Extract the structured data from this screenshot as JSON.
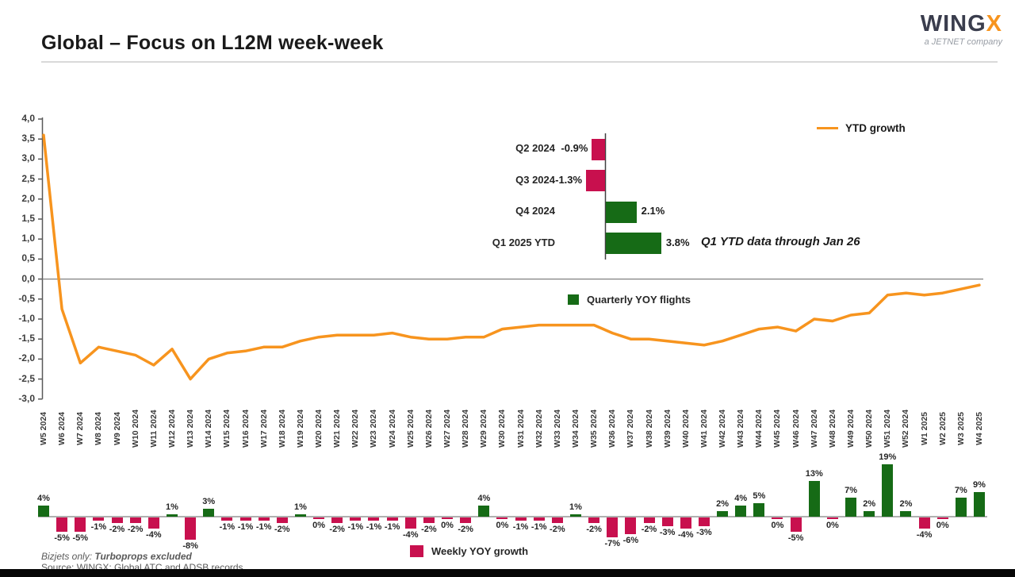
{
  "header": {
    "title": "Global – Focus on L12M week-week",
    "logo": {
      "brand": "WING",
      "brand_x": "X",
      "tagline": "a JETNET company"
    }
  },
  "colors": {
    "line_orange": "#F7941E",
    "bar_green": "#166B16",
    "bar_crimson": "#C8104E",
    "brand_navy": "#3A3D4D",
    "axis_gray": "#808080"
  },
  "footer": {
    "note_prefix": "Bizjets only: ",
    "note_emphasis": "Turboprops excluded",
    "source": "Source: WINGX; Global ATC and ADSB records"
  },
  "chart_data": [
    {
      "type": "line",
      "name": "ytd-growth",
      "legend": "YTD growth",
      "ylim": [
        -3.0,
        4.0
      ],
      "ytick_labels": [
        "4,0",
        "3,5",
        "3,0",
        "2,5",
        "2,0",
        "1,5",
        "1,0",
        "0,5",
        "0,0",
        "-0,5",
        "-1,0",
        "-1,5",
        "-2,0",
        "-2,5",
        "-3,0"
      ],
      "x": [
        "W5 2024",
        "W6 2024",
        "W7 2024",
        "W8 2024",
        "W9 2024",
        "W10 2024",
        "W11 2024",
        "W12 2024",
        "W13 2024",
        "W14 2024",
        "W15 2024",
        "W16 2024",
        "W17 2024",
        "W18 2024",
        "W19 2024",
        "W20 2024",
        "W21 2024",
        "W22 2024",
        "W23 2024",
        "W24 2024",
        "W25 2024",
        "W26 2024",
        "W27 2024",
        "W28 2024",
        "W29 2024",
        "W30 2024",
        "W31 2024",
        "W32 2024",
        "W33 2024",
        "W34 2024",
        "W35 2024",
        "W36 2024",
        "W37 2024",
        "W38 2024",
        "W39 2024",
        "W40 2024",
        "W41 2024",
        "W42 2024",
        "W43 2024",
        "W44 2024",
        "W45 2024",
        "W46 2024",
        "W47 2024",
        "W48 2024",
        "W49 2024",
        "W50 2024",
        "W51 2024",
        "W52 2024",
        "W1 2025",
        "W2 2025",
        "W3 2025",
        "W4 2025"
      ],
      "values": [
        3.6,
        -0.75,
        -2.1,
        -1.7,
        -1.8,
        -1.9,
        -2.15,
        -1.75,
        -2.5,
        -2.0,
        -1.85,
        -1.8,
        -1.7,
        -1.7,
        -1.55,
        -1.45,
        -1.4,
        -1.4,
        -1.4,
        -1.35,
        -1.45,
        -1.5,
        -1.5,
        -1.45,
        -1.45,
        -1.25,
        -1.2,
        -1.15,
        -1.15,
        -1.15,
        -1.15,
        -1.35,
        -1.5,
        -1.5,
        -1.55,
        -1.6,
        -1.65,
        -1.55,
        -1.4,
        -1.25,
        -1.2,
        -1.3,
        -1.0,
        -1.05,
        -0.9,
        -0.85,
        -0.4,
        -0.35,
        -0.4,
        -0.35,
        -0.25,
        -0.15
      ]
    },
    {
      "type": "bar",
      "name": "quarterly-yoy-flights",
      "orientation": "horizontal",
      "legend": "Quarterly YOY flights",
      "categories": [
        "Q2 2024",
        "Q3 2024",
        "Q4 2024",
        "Q1 2025 YTD"
      ],
      "values": [
        -0.9,
        -1.3,
        2.1,
        3.8
      ],
      "labels": [
        "-0.9%",
        "-1.3%",
        "2.1%",
        "3.8%"
      ],
      "annotation": "Q1 YTD data through Jan 26"
    },
    {
      "type": "bar",
      "name": "weekly-yoy-growth",
      "legend": "Weekly YOY growth",
      "categories": [
        "W5 2024",
        "W6 2024",
        "W7 2024",
        "W8 2024",
        "W9 2024",
        "W10 2024",
        "W11 2024",
        "W12 2024",
        "W13 2024",
        "W14 2024",
        "W15 2024",
        "W16 2024",
        "W17 2024",
        "W18 2024",
        "W19 2024",
        "W20 2024",
        "W21 2024",
        "W22 2024",
        "W23 2024",
        "W24 2024",
        "W25 2024",
        "W26 2024",
        "W27 2024",
        "W28 2024",
        "W29 2024",
        "W30 2024",
        "W31 2024",
        "W32 2024",
        "W33 2024",
        "W34 2024",
        "W35 2024",
        "W36 2024",
        "W37 2024",
        "W38 2024",
        "W39 2024",
        "W40 2024",
        "W41 2024",
        "W42 2024",
        "W43 2024",
        "W44 2024",
        "W45 2024",
        "W46 2024",
        "W47 2024",
        "W48 2024",
        "W49 2024",
        "W50 2024",
        "W51 2024",
        "W52 2024",
        "W1 2025",
        "W2 2025",
        "W3 2025",
        "W4 2025"
      ],
      "values": [
        4,
        -5,
        -5,
        -1,
        -2,
        -2,
        -4,
        1,
        -8,
        3,
        -1,
        -1,
        -1,
        -2,
        1,
        0,
        -2,
        -1,
        -1,
        -1,
        -4,
        -2,
        0,
        -2,
        4,
        0,
        -1,
        -1,
        -2,
        1,
        -2,
        -7,
        -6,
        -2,
        -3,
        -4,
        -3,
        2,
        4,
        5,
        0,
        -5,
        13,
        0,
        7,
        2,
        19,
        2,
        -4,
        0,
        7,
        9
      ]
    }
  ]
}
